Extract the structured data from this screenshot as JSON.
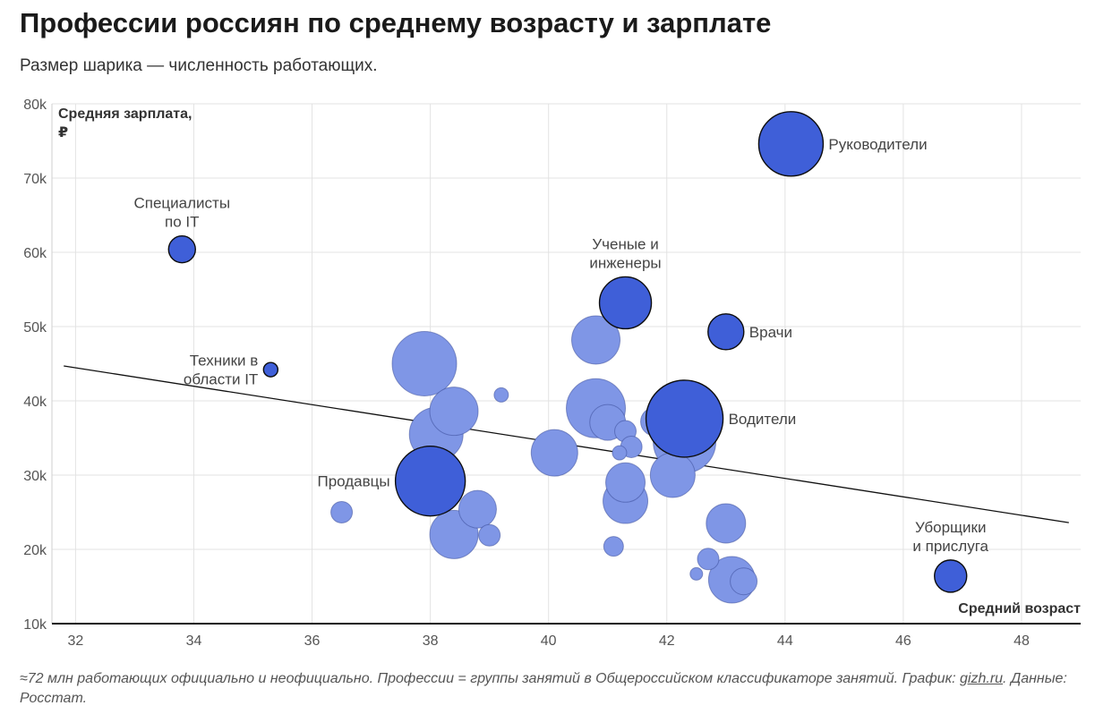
{
  "title": "Профессии россиян по среднему возрасту и зарплате",
  "subtitle": "Размер шарика — численность работающих.",
  "footnote": {
    "text_before": "≈72 млн работающих официально и неофициально. Профессии = группы занятий в Общероссийском классификаторе занятий. График: ",
    "link": "gizh.ru",
    "text_after": ". Данные: Росстат."
  },
  "colors": {
    "highlight": "#3f5fd8",
    "regular": "#7f96e6",
    "grid": "#e3e3e3",
    "axis": "#111111",
    "label": "#444444"
  },
  "chart_data": {
    "type": "scatter",
    "xlabel": "Средний возраст",
    "ylabel_lines": [
      "Средняя зарплата,",
      "₽"
    ],
    "xlim": [
      31.6,
      49
    ],
    "ylim": [
      10000,
      80000
    ],
    "x_ticks": [
      "32",
      "34",
      "36",
      "38",
      "40",
      "42",
      "44",
      "46",
      "48"
    ],
    "x_tick_values": [
      32,
      34,
      36,
      38,
      40,
      42,
      44,
      46,
      48
    ],
    "y_ticks": [
      "10k",
      "20k",
      "30k",
      "40k",
      "50k",
      "60k",
      "70k",
      "80k"
    ],
    "y_tick_values": [
      10000,
      20000,
      30000,
      40000,
      50000,
      60000,
      70000,
      80000
    ],
    "trend_line": {
      "x": [
        31.8,
        48.8
      ],
      "y": [
        44700,
        23600
      ]
    },
    "points": [
      {
        "x": 44.1,
        "y": 74600,
        "size": 36,
        "highlight": true,
        "label": [
          "Руководители"
        ],
        "label_pos": "right"
      },
      {
        "x": 33.8,
        "y": 60400,
        "size": 15,
        "highlight": true,
        "label": [
          "Специалисты",
          "по IT"
        ],
        "label_pos": "above"
      },
      {
        "x": 41.3,
        "y": 53200,
        "size": 29,
        "highlight": true,
        "label": [
          "Ученые и",
          "инженеры"
        ],
        "label_pos": "above"
      },
      {
        "x": 43.0,
        "y": 49300,
        "size": 20,
        "highlight": true,
        "label": [
          "Врачи"
        ],
        "label_pos": "right"
      },
      {
        "x": 35.3,
        "y": 44200,
        "size": 8,
        "highlight": true,
        "label": [
          "Техники в",
          "области IT"
        ],
        "label_pos": "left"
      },
      {
        "x": 42.3,
        "y": 37600,
        "size": 43,
        "highlight": true,
        "label": [
          "Водители"
        ],
        "label_pos": "right"
      },
      {
        "x": 38.0,
        "y": 29200,
        "size": 39,
        "highlight": true,
        "label": [
          "Продавцы"
        ],
        "label_pos": "left"
      },
      {
        "x": 46.8,
        "y": 16400,
        "size": 18,
        "highlight": true,
        "label": [
          "Уборщики",
          "и прислуга"
        ],
        "label_pos": "above"
      },
      {
        "x": 37.9,
        "y": 45000,
        "size": 36,
        "highlight": false
      },
      {
        "x": 38.4,
        "y": 38600,
        "size": 27,
        "highlight": false
      },
      {
        "x": 38.1,
        "y": 35500,
        "size": 30,
        "highlight": false
      },
      {
        "x": 39.2,
        "y": 40800,
        "size": 8,
        "highlight": false
      },
      {
        "x": 36.5,
        "y": 25000,
        "size": 12,
        "highlight": false
      },
      {
        "x": 38.8,
        "y": 25400,
        "size": 21,
        "highlight": false
      },
      {
        "x": 38.4,
        "y": 22000,
        "size": 27,
        "highlight": false
      },
      {
        "x": 39.0,
        "y": 21900,
        "size": 12,
        "highlight": false
      },
      {
        "x": 40.8,
        "y": 48200,
        "size": 27,
        "highlight": false
      },
      {
        "x": 40.8,
        "y": 39000,
        "size": 33,
        "highlight": false
      },
      {
        "x": 40.1,
        "y": 33000,
        "size": 26,
        "highlight": false
      },
      {
        "x": 41.0,
        "y": 37100,
        "size": 20,
        "highlight": false
      },
      {
        "x": 41.3,
        "y": 35900,
        "size": 12,
        "highlight": false
      },
      {
        "x": 41.4,
        "y": 33800,
        "size": 12,
        "highlight": false
      },
      {
        "x": 41.2,
        "y": 33000,
        "size": 8,
        "highlight": false
      },
      {
        "x": 41.8,
        "y": 37200,
        "size": 16,
        "highlight": false
      },
      {
        "x": 42.3,
        "y": 34500,
        "size": 35,
        "highlight": false
      },
      {
        "x": 42.1,
        "y": 30000,
        "size": 25,
        "highlight": false
      },
      {
        "x": 41.3,
        "y": 29000,
        "size": 22,
        "highlight": false
      },
      {
        "x": 41.3,
        "y": 26500,
        "size": 25,
        "highlight": false
      },
      {
        "x": 41.1,
        "y": 20400,
        "size": 11,
        "highlight": false
      },
      {
        "x": 43.0,
        "y": 23500,
        "size": 22,
        "highlight": false
      },
      {
        "x": 42.7,
        "y": 18700,
        "size": 12,
        "highlight": false
      },
      {
        "x": 42.5,
        "y": 16700,
        "size": 7,
        "highlight": false
      },
      {
        "x": 43.1,
        "y": 15900,
        "size": 26,
        "highlight": false
      },
      {
        "x": 43.3,
        "y": 15700,
        "size": 15,
        "highlight": false
      }
    ]
  }
}
